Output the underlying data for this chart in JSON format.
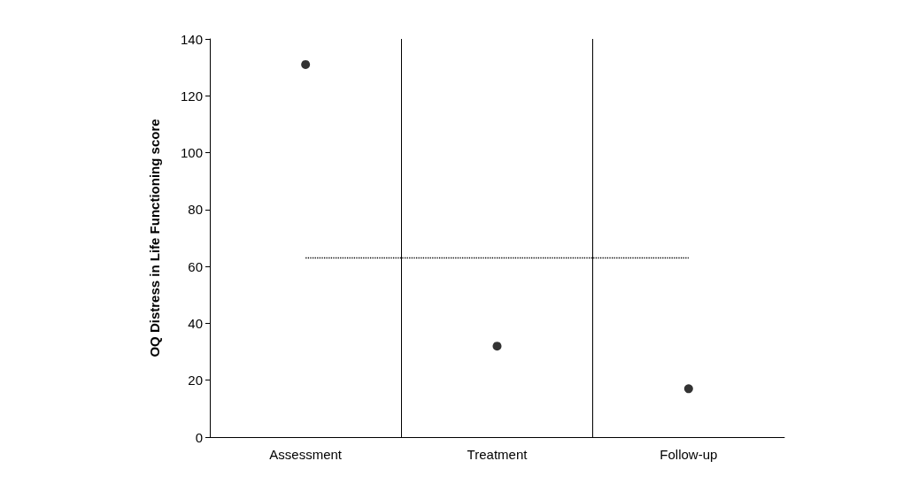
{
  "chart_data": {
    "type": "scatter",
    "ylabel": "OQ Distress in Life Functioning score",
    "categories": [
      "Assessment",
      "Treatment",
      "Follow-up"
    ],
    "values": [
      131,
      32,
      17
    ],
    "color": "#000000",
    "marker": "circle",
    "ylim": [
      0,
      140
    ],
    "yticks": [
      0,
      20,
      40,
      60,
      80,
      100,
      120,
      140
    ],
    "grid": "x",
    "ref_lines": [
      {
        "axis": "y",
        "value": 63,
        "line_style": "dotted",
        "color": "#000000"
      }
    ]
  }
}
